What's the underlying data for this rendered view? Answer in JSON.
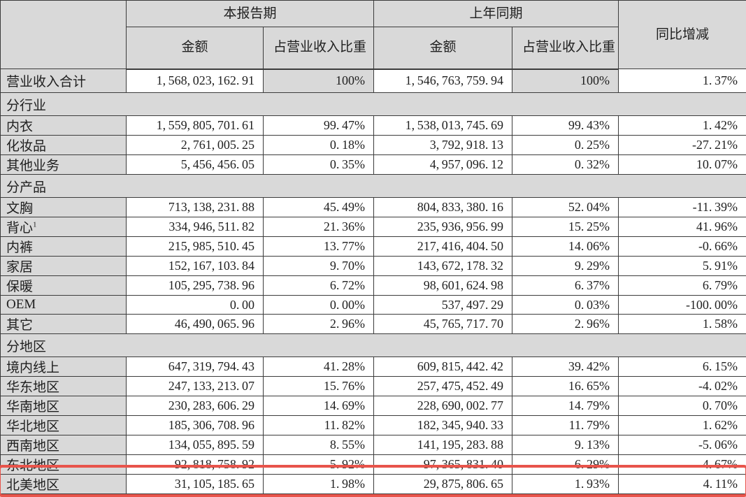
{
  "table": {
    "header": {
      "current_period": "本报告期",
      "prior_period": "上年同期",
      "amount": "金额",
      "revenue_ratio": "占营业收入比重",
      "yoy_change": "同比增减"
    },
    "colors": {
      "header_bg": "#d9d9d9",
      "cell_bg": "#ffffff",
      "border": "#3c3c3c",
      "highlight_border": "#e8544b"
    },
    "rows": [
      {
        "type": "data",
        "label": "营业收入合计",
        "current_amount": "1,568,023,162.91",
        "current_ratio": "100%",
        "prior_amount": "1,546,763,759.94",
        "prior_ratio": "100%",
        "yoy": "1.37%"
      },
      {
        "type": "section",
        "label": "分行业"
      },
      {
        "type": "data",
        "label": "内衣",
        "current_amount": "1,559,805,701.61",
        "current_ratio": "99.47%",
        "prior_amount": "1,538,013,745.69",
        "prior_ratio": "99.43%",
        "yoy": "1.42%"
      },
      {
        "type": "data",
        "label": "化妆品",
        "current_amount": "2,761,005.25",
        "current_ratio": "0.18%",
        "prior_amount": "3,792,918.13",
        "prior_ratio": "0.25%",
        "yoy": "-27.21%"
      },
      {
        "type": "data",
        "label": "其他业务",
        "current_amount": "5,456,456.05",
        "current_ratio": "0.35%",
        "prior_amount": "4,957,096.12",
        "prior_ratio": "0.32%",
        "yoy": "10.07%"
      },
      {
        "type": "section",
        "label": "分产品"
      },
      {
        "type": "data",
        "label": "文胸",
        "current_amount": "713,138,231.88",
        "current_ratio": "45.49%",
        "prior_amount": "804,833,380.16",
        "prior_ratio": "52.04%",
        "yoy": "-11.39%"
      },
      {
        "type": "data",
        "label": "背心",
        "label_sup": "1",
        "current_amount": "334,946,511.82",
        "current_ratio": "21.36%",
        "prior_amount": "235,936,956.99",
        "prior_ratio": "15.25%",
        "yoy": "41.96%"
      },
      {
        "type": "data",
        "label": "内裤",
        "current_amount": "215,985,510.45",
        "current_ratio": "13.77%",
        "prior_amount": "217,416,404.50",
        "prior_ratio": "14.06%",
        "yoy": "-0.66%"
      },
      {
        "type": "data",
        "label": "家居",
        "current_amount": "152,167,103.84",
        "current_ratio": "9.70%",
        "prior_amount": "143,672,178.32",
        "prior_ratio": "9.29%",
        "yoy": "5.91%"
      },
      {
        "type": "data",
        "label": "保暖",
        "current_amount": "105,295,738.96",
        "current_ratio": "6.72%",
        "prior_amount": "98,601,624.98",
        "prior_ratio": "6.37%",
        "yoy": "6.79%"
      },
      {
        "type": "data",
        "label": "OEM",
        "current_amount": "0.00",
        "current_ratio": "0.00%",
        "prior_amount": "537,497.29",
        "prior_ratio": "0.03%",
        "yoy": "-100.00%"
      },
      {
        "type": "data",
        "label": "其它",
        "current_amount": "46,490,065.96",
        "current_ratio": "2.96%",
        "prior_amount": "45,765,717.70",
        "prior_ratio": "2.96%",
        "yoy": "1.58%"
      },
      {
        "type": "section",
        "label": "分地区"
      },
      {
        "type": "data",
        "label": "境内线上",
        "current_amount": "647,319,794.43",
        "current_ratio": "41.28%",
        "prior_amount": "609,815,442.42",
        "prior_ratio": "39.42%",
        "yoy": "6.15%"
      },
      {
        "type": "data",
        "label": "华东地区",
        "current_amount": "247,133,213.07",
        "current_ratio": "15.76%",
        "prior_amount": "257,475,452.49",
        "prior_ratio": "16.65%",
        "yoy": "-4.02%"
      },
      {
        "type": "data",
        "label": "华南地区",
        "current_amount": "230,283,606.29",
        "current_ratio": "14.69%",
        "prior_amount": "228,690,002.77",
        "prior_ratio": "14.79%",
        "yoy": "0.70%"
      },
      {
        "type": "data",
        "label": "华北地区",
        "current_amount": "185,306,708.96",
        "current_ratio": "11.82%",
        "prior_amount": "182,345,940.33",
        "prior_ratio": "11.79%",
        "yoy": "1.62%"
      },
      {
        "type": "data",
        "label": "西南地区",
        "current_amount": "134,055,895.59",
        "current_ratio": "8.55%",
        "prior_amount": "141,195,283.88",
        "prior_ratio": "9.13%",
        "yoy": "-5.06%"
      },
      {
        "type": "data",
        "label": "东北地区",
        "current_amount": "92,818,758.92",
        "current_ratio": "5.92%",
        "prior_amount": "97,365,831.40",
        "prior_ratio": "6.29%",
        "yoy": "-4.67%"
      },
      {
        "type": "data",
        "label": "北美地区",
        "highlighted": true,
        "current_amount": "31,105,185.65",
        "current_ratio": "1.98%",
        "prior_amount": "29,875,806.65",
        "prior_ratio": "1.93%",
        "yoy": "4.11%"
      }
    ]
  }
}
